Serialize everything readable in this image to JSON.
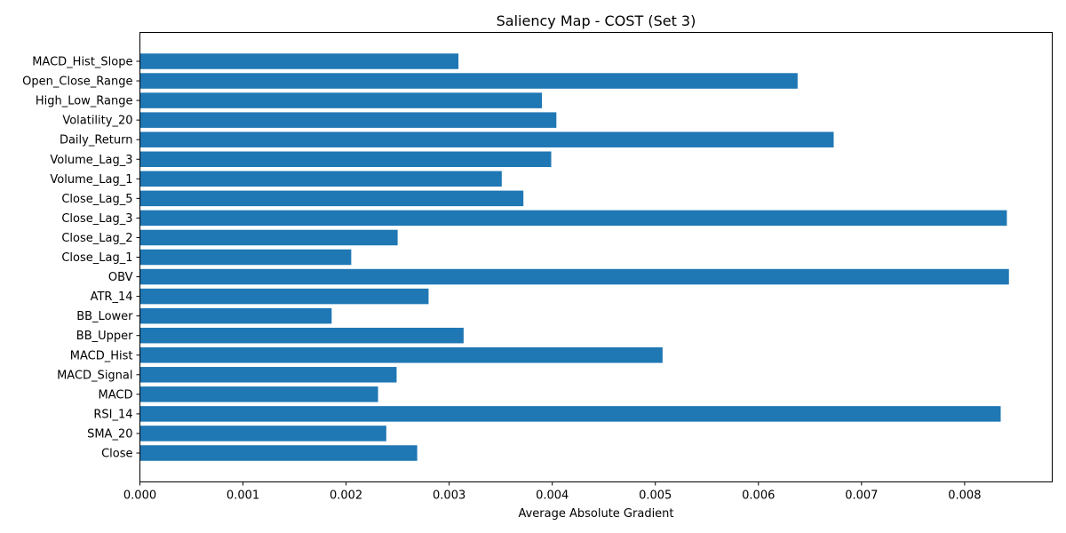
{
  "chart_data": {
    "type": "bar",
    "orientation": "horizontal",
    "title": "Saliency Map - COST (Set 3)",
    "xlabel": "Average Absolute Gradient",
    "ylabel": "",
    "xlim": [
      0,
      0.00885
    ],
    "xticks": [
      "0.000",
      "0.001",
      "0.002",
      "0.003",
      "0.004",
      "0.005",
      "0.006",
      "0.007",
      "0.008"
    ],
    "bar_color": "#1f77b4",
    "grid": false,
    "categories": [
      "Close",
      "SMA_20",
      "RSI_14",
      "MACD",
      "MACD_Signal",
      "MACD_Hist",
      "BB_Upper",
      "BB_Lower",
      "ATR_14",
      "OBV",
      "Close_Lag_1",
      "Close_Lag_2",
      "Close_Lag_3",
      "Close_Lag_5",
      "Volume_Lag_1",
      "Volume_Lag_3",
      "Daily_Return",
      "Volatility_20",
      "High_Low_Range",
      "Open_Close_Range",
      "MACD_Hist_Slope"
    ],
    "values": [
      0.00269,
      0.00239,
      0.00835,
      0.00231,
      0.00249,
      0.00507,
      0.00314,
      0.00186,
      0.0028,
      0.00843,
      0.00205,
      0.0025,
      0.00841,
      0.00372,
      0.00351,
      0.00399,
      0.00673,
      0.00404,
      0.0039,
      0.00638,
      0.00309
    ]
  }
}
